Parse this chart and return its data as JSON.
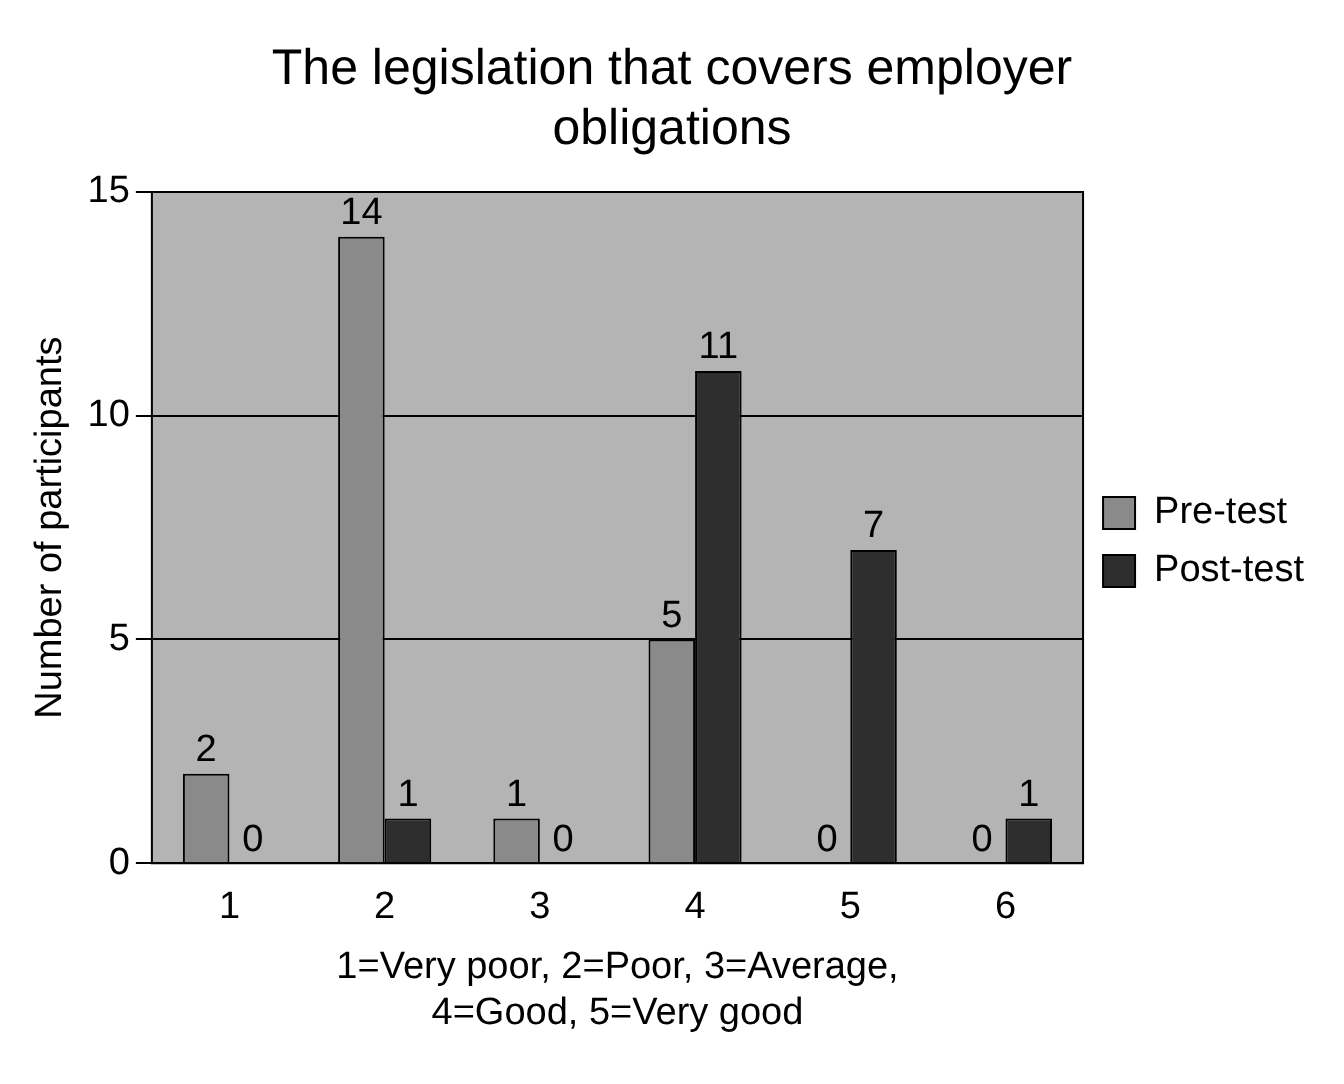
{
  "chart_data": {
    "type": "bar",
    "title": "The legislation that covers employer obligations",
    "xlabel": "1=Very poor, 2=Poor, 3=Average, 4=Good, 5=Very good",
    "ylabel": "Number of participants",
    "categories": [
      "1",
      "2",
      "3",
      "4",
      "5",
      "6"
    ],
    "series": [
      {
        "name": "Pre-test",
        "color": "#8a8a8a",
        "values": [
          2,
          14,
          1,
          5,
          0,
          0
        ]
      },
      {
        "name": "Post-test",
        "color": "#2e2e2e",
        "values": [
          0,
          1,
          0,
          11,
          7,
          1
        ]
      }
    ],
    "ylim": [
      0,
      15
    ],
    "yticks": [
      0,
      5,
      10,
      15
    ],
    "grid": "y",
    "legend": "right",
    "data_labels": true
  }
}
